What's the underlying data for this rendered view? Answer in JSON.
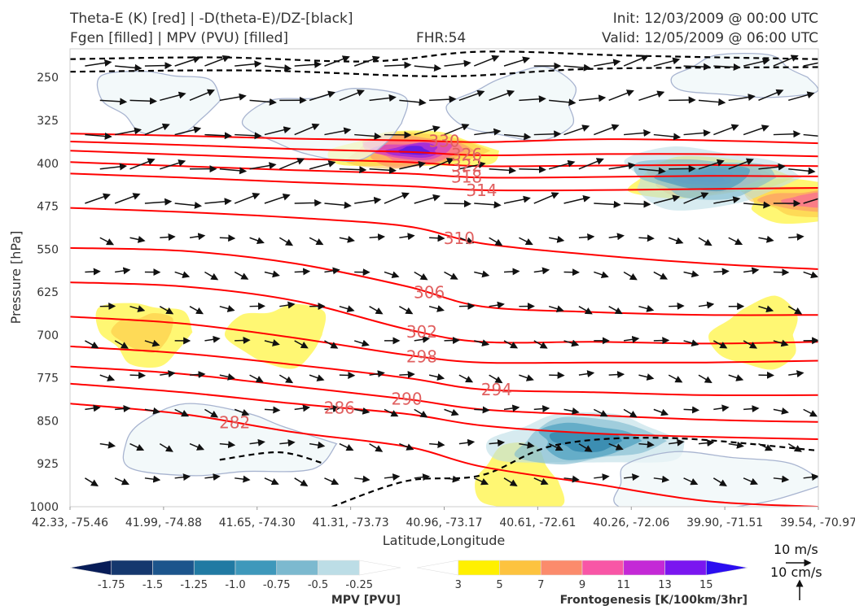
{
  "header": {
    "title_line1": "Theta-E (K) [red] | -D(theta-E)/DZ-[black]",
    "title_line2": "Fgen [filled] | MPV (PVU) [filled]",
    "fhr": "FHR:54",
    "init": "Init: 12/03/2009 @ 00:00 UTC",
    "valid": "Valid: 12/05/2009 @ 06:00 UTC"
  },
  "colors": {
    "theta_e": "#ff0000",
    "stability": "#000000",
    "mpv_outline": "#a8b4d0",
    "background": "#ffffff",
    "contour_label": "#e06060"
  },
  "chart_data": {
    "type": "cross-section",
    "title": "Theta-E (K) [red] | -D(theta-E)/DZ-[black]",
    "subtitle": "Fgen [filled] | MPV (PVU) [filled]",
    "xlabel": "Latitude,Longitude",
    "ylabel": "Pressure [hPa]",
    "x_ticks": [
      "42.33, -75.46",
      "41.99, -74.88",
      "41.65, -74.30",
      "41.31, -73.73",
      "40.96, -73.17",
      "40.61, -72.61",
      "40.26, -72.06",
      "39.90, -71.51",
      "39.54, -70.97"
    ],
    "y_ticks": [
      250,
      325,
      400,
      475,
      550,
      625,
      700,
      775,
      850,
      925,
      1000
    ],
    "y_range": [
      200,
      1000
    ],
    "y_inverted": true,
    "theta_e_labels": [
      330,
      326,
      322,
      318,
      314,
      310,
      306,
      302,
      298,
      294,
      290,
      286,
      282
    ],
    "theta_e_contours": [
      {
        "value": 330,
        "x": [
          0,
          0.15,
          0.3,
          0.45,
          0.55,
          0.7,
          0.85,
          1.0
        ],
        "p": [
          348,
          352,
          357,
          360,
          363,
          358,
          360,
          365
        ]
      },
      {
        "value": 326,
        "x": [
          0,
          0.15,
          0.3,
          0.45,
          0.55,
          0.7,
          0.85,
          1.0
        ],
        "p": [
          362,
          368,
          375,
          380,
          386,
          384,
          384,
          388
        ]
      },
      {
        "value": 322,
        "x": [
          0,
          0.15,
          0.3,
          0.45,
          0.55,
          0.7,
          0.85,
          1.0
        ],
        "p": [
          378,
          385,
          392,
          398,
          405,
          404,
          403,
          405
        ]
      },
      {
        "value": 318,
        "x": [
          0,
          0.15,
          0.3,
          0.45,
          0.55,
          0.7,
          0.85,
          1.0
        ],
        "p": [
          398,
          405,
          412,
          418,
          425,
          424,
          422,
          423
        ]
      },
      {
        "value": 314,
        "x": [
          0,
          0.15,
          0.3,
          0.45,
          0.55,
          0.7,
          0.85,
          1.0
        ],
        "p": [
          418,
          425,
          433,
          440,
          447,
          447,
          445,
          443
        ]
      },
      {
        "value": 310,
        "x": [
          0,
          0.15,
          0.3,
          0.45,
          0.55,
          0.7,
          0.85,
          1.0
        ],
        "p": [
          478,
          485,
          495,
          510,
          540,
          560,
          575,
          585
        ]
      },
      {
        "value": 306,
        "x": [
          0,
          0.15,
          0.3,
          0.45,
          0.55,
          0.7,
          0.85,
          1.0
        ],
        "p": [
          548,
          553,
          575,
          615,
          650,
          660,
          665,
          665
        ]
      },
      {
        "value": 302,
        "x": [
          0,
          0.15,
          0.3,
          0.45,
          0.55,
          0.7,
          0.85,
          1.0
        ],
        "p": [
          608,
          615,
          640,
          690,
          712,
          712,
          715,
          712
        ]
      },
      {
        "value": 298,
        "x": [
          0,
          0.15,
          0.3,
          0.45,
          0.55,
          0.7,
          0.85,
          1.0
        ],
        "p": [
          668,
          680,
          705,
          735,
          748,
          748,
          748,
          745
        ]
      },
      {
        "value": 294,
        "x": [
          0,
          0.15,
          0.3,
          0.45,
          0.55,
          0.7,
          0.85,
          1.0
        ],
        "p": [
          720,
          732,
          752,
          775,
          795,
          800,
          805,
          805
        ]
      },
      {
        "value": 290,
        "x": [
          0,
          0.15,
          0.3,
          0.45,
          0.55,
          0.7,
          0.85,
          1.0
        ],
        "p": [
          755,
          768,
          790,
          812,
          830,
          840,
          848,
          852
        ]
      },
      {
        "value": 286,
        "x": [
          0,
          0.15,
          0.3,
          0.45,
          0.55,
          0.7,
          0.85,
          1.0
        ],
        "p": [
          785,
          800,
          820,
          838,
          858,
          872,
          878,
          882
        ]
      },
      {
        "value": 282,
        "x": [
          0,
          0.15,
          0.3,
          0.45,
          0.55,
          0.7,
          0.85,
          1.0
        ],
        "p": [
          820,
          838,
          870,
          895,
          930,
          960,
          990,
          1000
        ]
      }
    ],
    "fgen_regions": [
      {
        "x": 0.46,
        "p": 378,
        "max": 15
      },
      {
        "x": 0.85,
        "p": 425,
        "max": 13
      },
      {
        "x": 0.99,
        "p": 465,
        "max": 9
      },
      {
        "x": 0.1,
        "p": 695,
        "max": 5
      },
      {
        "x": 0.28,
        "p": 700,
        "max": 3
      },
      {
        "x": 0.92,
        "p": 700,
        "max": 3
      },
      {
        "x": 0.6,
        "p": 955,
        "max": 3
      }
    ],
    "mpv_regions": [
      {
        "x": 0.69,
        "p": 885,
        "min": -1.0
      },
      {
        "x": 0.85,
        "p": 425,
        "min": -0.75
      }
    ],
    "mpv_colorbar": {
      "label": "MPV [PVU]",
      "ticks": [
        "-1.75",
        "-1.5",
        "-1.25",
        "-1.0",
        "-0.75",
        "-0.5",
        "-0.25"
      ],
      "colors": [
        "#081d58",
        "#15386e",
        "#1c558c",
        "#217aa3",
        "#3e98bb",
        "#7cb9cf",
        "#bcdde6",
        "#ffffff"
      ]
    },
    "fgen_colorbar": {
      "label": "Frontogenesis [K/100km/3hr]",
      "ticks": [
        "3",
        "5",
        "7",
        "9",
        "11",
        "13",
        "15"
      ],
      "colors": [
        "#ffffff",
        "#fff000",
        "#fdc33f",
        "#fb8b6c",
        "#f856a6",
        "#c429d6",
        "#7a16f0",
        "#2b0ef0"
      ]
    },
    "wind_key": {
      "horizontal": "10 m/s",
      "vertical": "10 cm/s"
    }
  }
}
